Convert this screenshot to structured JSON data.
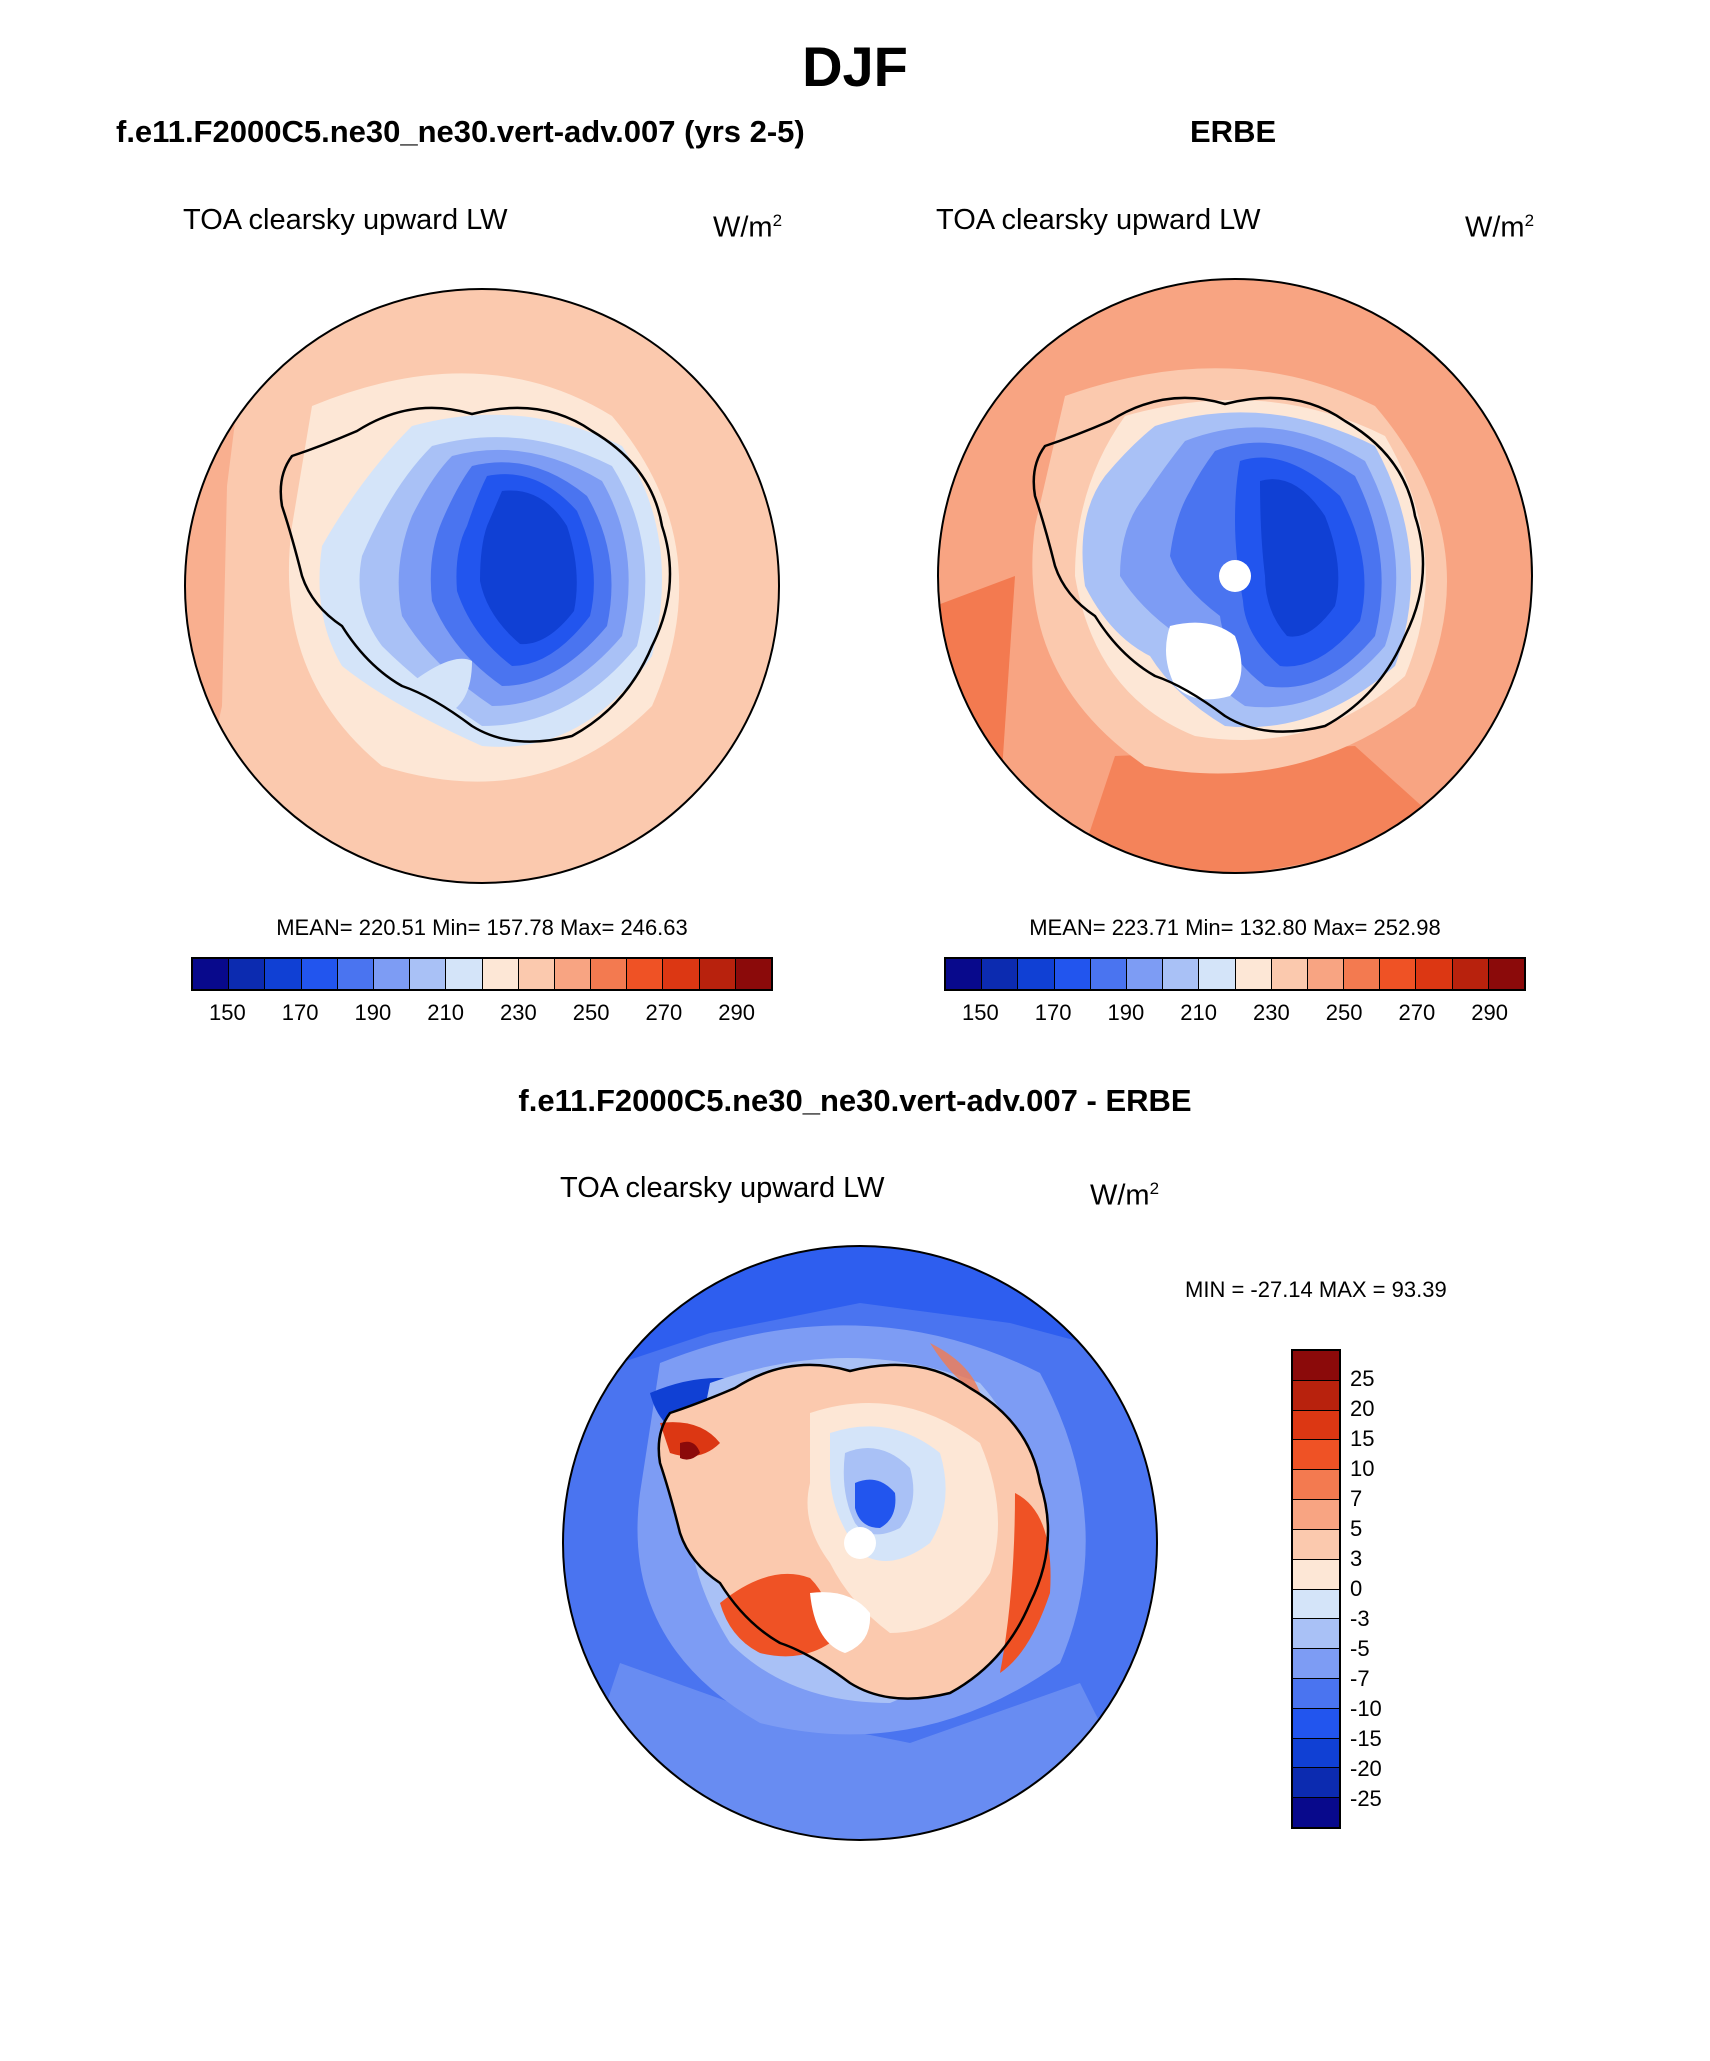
{
  "page": {
    "title": "DJF",
    "diff_title": "f.e11.F2000C5.ne30_ne30.vert-adv.007 - ERBE"
  },
  "panels": [
    {
      "case_title": "f.e11.F2000C5.ne30_ne30.vert-adv.007 (yrs 2-5)",
      "variable": "TOA clearsky upward LW",
      "units": "W/m",
      "units_sup": "2",
      "stats": "MEAN= 220.51  Min= 157.78  Max= 246.63"
    },
    {
      "case_title": "ERBE",
      "variable": "TOA clearsky upward LW",
      "units": "W/m",
      "units_sup": "2",
      "stats": "MEAN= 223.71  Min= 132.80  Max= 252.98"
    },
    {
      "variable": "TOA clearsky upward LW",
      "units": "W/m",
      "units_sup": "2",
      "stats": "MIN = -27.14 MAX =  93.39"
    }
  ],
  "colorbar_abs": {
    "colors": [
      "#08098c",
      "#0c2bb0",
      "#1040d4",
      "#2255ee",
      "#4a74f0",
      "#7d9cf4",
      "#a9c1f6",
      "#d4e4f9",
      "#fde7d6",
      "#fbc9ae",
      "#f8a482",
      "#f37a50",
      "#ef5225",
      "#dc3713",
      "#b8220d",
      "#8b0a0a"
    ],
    "tick_labels": [
      "150",
      "170",
      "190",
      "210",
      "230",
      "250",
      "270",
      "290"
    ]
  },
  "colorbar_diff": {
    "colors": [
      "#8b0a0a",
      "#b8220d",
      "#dc3713",
      "#ef5225",
      "#f37a50",
      "#f8a482",
      "#fbc9ae",
      "#fde7d6",
      "#d4e4f9",
      "#a9c1f6",
      "#7d9cf4",
      "#4a74f0",
      "#2255ee",
      "#1040d4",
      "#0c2bb0",
      "#08098c"
    ],
    "tick_labels": [
      "25",
      "20",
      "15",
      "10",
      "7",
      "5",
      "3",
      "0",
      "-3",
      "-5",
      "-7",
      "-10",
      "-15",
      "-20",
      "-25"
    ]
  }
}
